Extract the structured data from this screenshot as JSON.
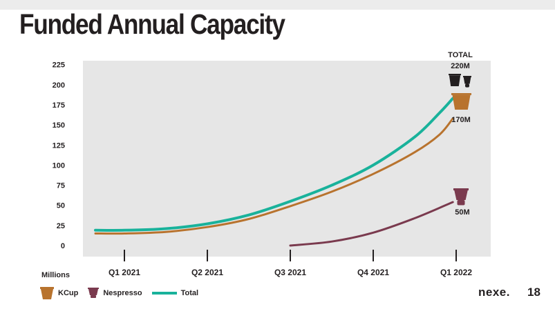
{
  "slide": {
    "title": "Funded Annual Capacity",
    "page_number": "18",
    "brand": "nexe."
  },
  "colors": {
    "kcup": "#b8732e",
    "nespresso": "#7a3a4e",
    "total": "#19b29b",
    "plot_bg": "#e6e6e6",
    "dark_pod": "#231f20"
  },
  "legend": {
    "kcup_label": "KCup",
    "nespresso_label": "Nespresso",
    "total_label": "Total"
  },
  "annotations": {
    "total_title": "TOTAL",
    "total_value": "220M",
    "kcup_value": "170M",
    "nespresso_value": "50M"
  },
  "chart_data": {
    "type": "line",
    "units_label": "Millions",
    "ylim": [
      0,
      225
    ],
    "yticks": [
      0,
      25,
      50,
      75,
      100,
      125,
      150,
      175,
      200,
      225
    ],
    "categories": [
      "Q1 2021",
      "Q2 2021",
      "Q3 2021",
      "Q4 2021",
      "Q1 2022"
    ],
    "xlim": [
      -0.35,
      4.4
    ],
    "grid": false,
    "legend_position": "bottom-left",
    "series": [
      {
        "name": "Total",
        "color": "#19b29b",
        "points": [
          [
            -0.35,
            19
          ],
          [
            0,
            19
          ],
          [
            0.5,
            21
          ],
          [
            1,
            27
          ],
          [
            1.5,
            38
          ],
          [
            2,
            55
          ],
          [
            2.5,
            75
          ],
          [
            3,
            100
          ],
          [
            3.5,
            135
          ],
          [
            3.8,
            165
          ],
          [
            3.96,
            183
          ]
        ]
      },
      {
        "name": "KCup",
        "color": "#b8732e",
        "points": [
          [
            -0.35,
            15
          ],
          [
            0,
            15
          ],
          [
            0.5,
            17
          ],
          [
            1,
            23
          ],
          [
            1.5,
            33
          ],
          [
            2,
            49
          ],
          [
            2.5,
            67
          ],
          [
            3,
            89
          ],
          [
            3.5,
            116
          ],
          [
            3.8,
            138
          ],
          [
            3.96,
            158
          ]
        ]
      },
      {
        "name": "Nespresso",
        "color": "#7a3a4e",
        "points": [
          [
            2,
            0
          ],
          [
            2.5,
            5
          ],
          [
            3,
            16
          ],
          [
            3.5,
            34
          ],
          [
            3.96,
            54
          ]
        ]
      }
    ]
  }
}
